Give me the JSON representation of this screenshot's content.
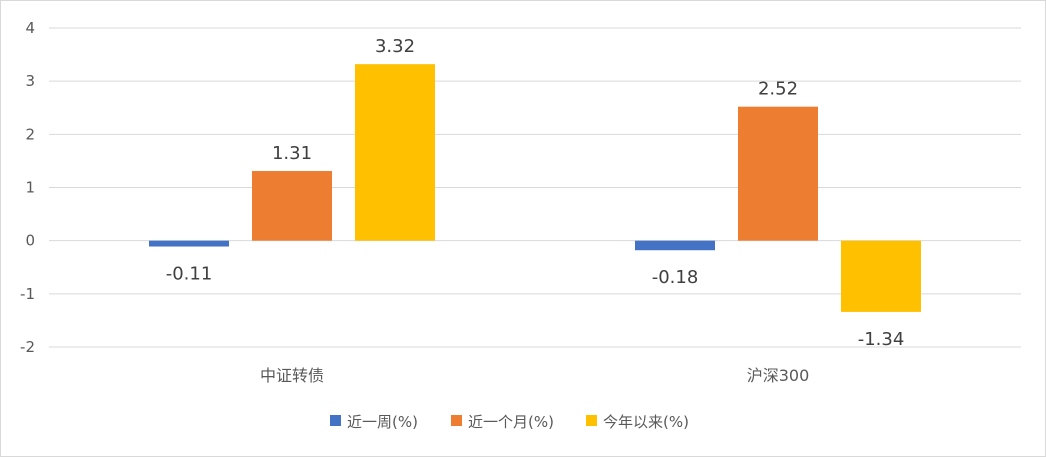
{
  "chart_data": {
    "type": "bar",
    "categories": [
      "中证转债",
      "沪深300"
    ],
    "series": [
      {
        "name": "近一周(%)",
        "values": [
          -0.11,
          -0.18
        ],
        "color": "#4472C4"
      },
      {
        "name": "近一个月(%)",
        "values": [
          1.31,
          2.52
        ],
        "color": "#ED7D31"
      },
      {
        "name": "今年以来(%)",
        "values": [
          3.32,
          -1.34
        ],
        "color": "#FFC000"
      }
    ],
    "y_ticks": [
      "-2",
      "-1",
      "0",
      "1",
      "2",
      "3",
      "4"
    ],
    "data_labels": [
      [
        "-0.11",
        "-0.18"
      ],
      [
        "1.31",
        "2.52"
      ],
      [
        "3.32",
        "-1.34"
      ]
    ],
    "ylim": [
      -2,
      4
    ],
    "grid": true,
    "legend_position": "bottom",
    "title": "",
    "xlabel": "",
    "ylabel": ""
  }
}
